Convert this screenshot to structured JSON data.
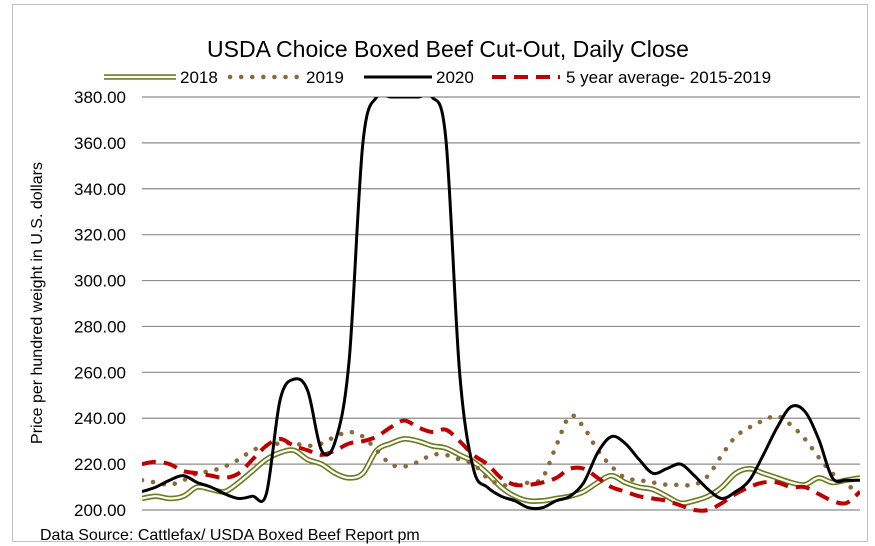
{
  "chart_data": {
    "type": "line",
    "title": "USDA Choice Boxed Beef Cut-Out, Daily Close",
    "ylabel": "Price per hundred weight in U.S. dollars",
    "xlabel": "",
    "ylim": [
      200,
      380
    ],
    "yticks": [
      "200.00",
      "220.00",
      "240.00",
      "260.00",
      "280.00",
      "300.00",
      "320.00",
      "340.00",
      "360.00",
      "380.00"
    ],
    "grid": "horizontal",
    "legend_position": "top",
    "source": "Data Source: Cattlefax/ USDA Boxed Beef Report pm",
    "x_range": [
      0,
      52
    ],
    "series": [
      {
        "name": "2018",
        "style": "double-olive",
        "color": "#6b7d1f",
        "x": [
          0,
          1,
          2,
          3,
          4,
          5,
          6,
          7,
          8,
          9,
          10,
          11,
          12,
          13,
          14,
          15,
          16,
          17,
          18,
          19,
          20,
          21,
          22,
          23,
          24,
          25,
          26,
          27,
          28,
          29,
          30,
          31,
          32,
          33,
          34,
          35,
          36,
          37,
          38,
          39,
          40,
          41,
          42,
          43,
          44,
          45,
          46,
          47,
          48,
          49,
          50,
          51,
          52
        ],
        "values": [
          205,
          206,
          205,
          206,
          210,
          209,
          208,
          212,
          217,
          222,
          225,
          226,
          222,
          220,
          216,
          214,
          216,
          226,
          229,
          231,
          230,
          228,
          227,
          224,
          221,
          216,
          210,
          206,
          204,
          204,
          205,
          206,
          208,
          212,
          215,
          212,
          210,
          209,
          206,
          203,
          204,
          206,
          210,
          216,
          218,
          216,
          214,
          212,
          211,
          214,
          212,
          213,
          214
        ]
      },
      {
        "name": "2019",
        "style": "dotted-brown",
        "color": "#8b6a3a",
        "x": [
          0,
          1,
          2,
          3,
          4,
          5,
          6,
          7,
          8,
          9,
          10,
          11,
          12,
          13,
          14,
          15,
          16,
          17,
          18,
          19,
          20,
          21,
          22,
          23,
          24,
          25,
          26,
          27,
          28,
          29,
          30,
          31,
          32,
          33,
          34,
          35,
          36,
          37,
          38,
          39,
          40,
          41,
          42,
          43,
          44,
          45,
          46,
          47,
          48,
          49,
          50,
          51,
          52
        ],
        "values": [
          213,
          212,
          211,
          213,
          216,
          217,
          219,
          222,
          226,
          228,
          229,
          229,
          228,
          229,
          232,
          234,
          232,
          226,
          220,
          219,
          221,
          224,
          224,
          222,
          220,
          214,
          211,
          211,
          212,
          214,
          228,
          241,
          236,
          226,
          219,
          214,
          213,
          212,
          211,
          211,
          211,
          215,
          224,
          232,
          236,
          239,
          241,
          237,
          231,
          223,
          216,
          211,
          208
        ]
      },
      {
        "name": "2020",
        "style": "solid-black",
        "color": "#000000",
        "x": [
          0,
          1,
          2,
          3,
          4,
          5,
          6,
          7,
          8,
          9,
          10,
          11,
          12,
          13,
          14,
          15,
          16,
          17,
          18,
          19,
          20,
          21,
          22,
          23,
          24,
          25,
          26,
          27,
          28,
          29,
          30,
          31,
          32,
          33,
          34,
          35,
          36,
          37,
          38,
          39,
          40,
          41,
          42,
          43,
          44,
          45,
          46,
          47,
          48,
          49,
          50,
          51,
          52
        ],
        "values": [
          208,
          210,
          213,
          215,
          212,
          210,
          207,
          205,
          206,
          207,
          248,
          257,
          252,
          226,
          230,
          265,
          360,
          380,
          380,
          380,
          380,
          380,
          362,
          260,
          218,
          210,
          206,
          204,
          201,
          201,
          204,
          206,
          212,
          225,
          232,
          229,
          222,
          216,
          218,
          220,
          215,
          209,
          205,
          208,
          213,
          224,
          236,
          245,
          243,
          231,
          214,
          213,
          213
        ]
      },
      {
        "name": "5 year average- 2015-2019",
        "style": "dashed-red",
        "color": "#c00000",
        "x": [
          0,
          1,
          2,
          3,
          4,
          5,
          6,
          7,
          8,
          9,
          10,
          11,
          12,
          13,
          14,
          15,
          16,
          17,
          18,
          19,
          20,
          21,
          22,
          23,
          24,
          25,
          26,
          27,
          28,
          29,
          30,
          31,
          32,
          33,
          34,
          35,
          36,
          37,
          38,
          39,
          40,
          41,
          42,
          43,
          44,
          45,
          46,
          47,
          48,
          49,
          50,
          51,
          52
        ],
        "values": [
          220,
          221,
          220,
          217,
          216,
          215,
          214,
          216,
          222,
          228,
          231,
          228,
          226,
          224,
          226,
          229,
          230,
          232,
          236,
          239,
          236,
          234,
          235,
          230,
          224,
          220,
          214,
          211,
          211,
          212,
          214,
          218,
          218,
          214,
          210,
          208,
          206,
          205,
          204,
          202,
          200,
          200,
          203,
          207,
          210,
          212,
          212,
          210,
          210,
          207,
          204,
          203,
          208
        ]
      }
    ]
  }
}
